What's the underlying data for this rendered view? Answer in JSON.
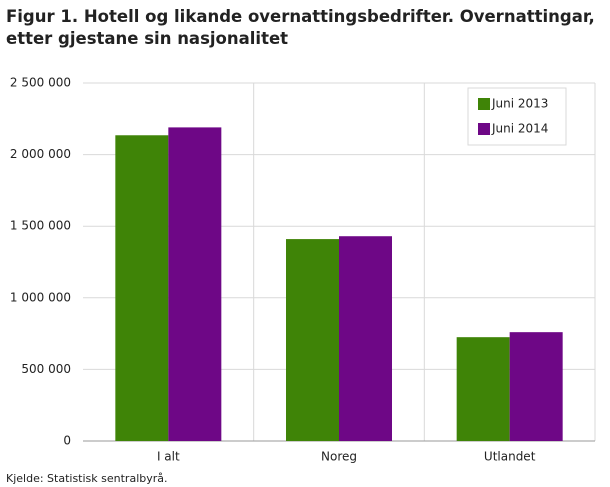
{
  "chart_data": {
    "type": "bar",
    "title": "Figur 1. Hotell og likande overnattingsbedrifter. Overnattingar, etter gjestane sin nasjonalitet",
    "categories": [
      "I alt",
      "Noreg",
      "Utlandet"
    ],
    "series": [
      {
        "name": "Juni 2013",
        "color": "#3f8407",
        "values": [
          2135000,
          1410000,
          725000
        ]
      },
      {
        "name": "Juni 2014",
        "color": "#6e0786",
        "values": [
          2190000,
          1430000,
          760000
        ]
      }
    ],
    "ylim": [
      0,
      2500000
    ],
    "yticks": [
      0,
      {
        "value": 500000,
        "label": "500 000"
      },
      {
        "value": 1000000,
        "label": "1 000 000"
      },
      {
        "value": 1500000,
        "label": "1 500 000"
      },
      {
        "value": 2000000,
        "label": "2 000 000"
      },
      {
        "value": 2500000,
        "label": "2 500 000"
      }
    ],
    "grid": true,
    "legend": "top-right",
    "source": "Kjelde: Statistisk sentralbyrå."
  }
}
